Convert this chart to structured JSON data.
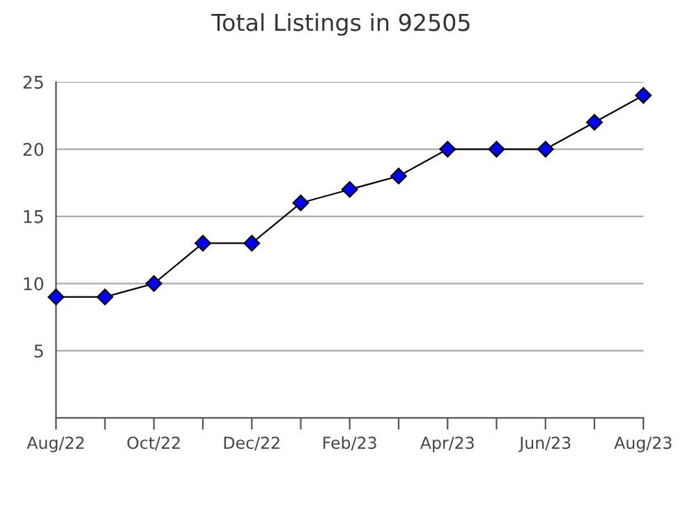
{
  "chart_data": {
    "type": "line",
    "title": "Total Listings in 92505",
    "categories": [
      "Aug/22",
      null,
      "Oct/22",
      null,
      "Dec/22",
      null,
      "Feb/23",
      null,
      "Apr/23",
      null,
      "Jun/23",
      null,
      "Aug/23"
    ],
    "series": [
      {
        "color": "#0000ff",
        "values": [
          9,
          9,
          10,
          13,
          13,
          16,
          17,
          18,
          20,
          20,
          20,
          22,
          24
        ]
      }
    ],
    "ylim": [
      0,
      25
    ],
    "yticks": [
      5,
      10,
      15,
      20,
      25
    ],
    "grid": "y",
    "marker": "diamond",
    "line_style": "solid",
    "legend": false
  }
}
